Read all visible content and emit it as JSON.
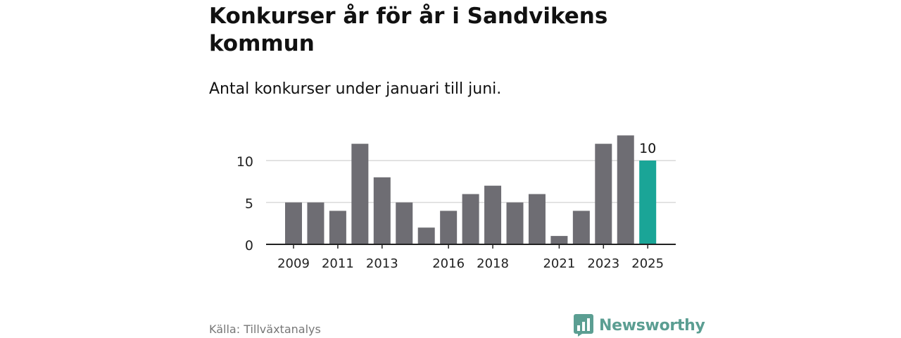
{
  "chart_data": {
    "type": "bar",
    "title": "Konkurser år för år i Sandvikens kommun",
    "subtitle": "Antal konkurser under januari till juni.",
    "categories": [
      "2009",
      "2010",
      "2011",
      "2012",
      "2013",
      "2014",
      "2015",
      "2016",
      "2017",
      "2018",
      "2019",
      "2020",
      "2021",
      "2022",
      "2023",
      "2024",
      "2025"
    ],
    "tick_labels": [
      "2009",
      "2011",
      "2013",
      "2016",
      "2018",
      "2021",
      "2023",
      "2025"
    ],
    "values": [
      5,
      5,
      4,
      12,
      8,
      5,
      2,
      4,
      6,
      7,
      5,
      6,
      1,
      4,
      12,
      13,
      10
    ],
    "highlight": {
      "category": "2025",
      "label": "10"
    },
    "ylim": [
      0,
      13
    ],
    "yticks": [
      0,
      5,
      10
    ],
    "grid": true,
    "colors": {
      "bar": "#6e6d73",
      "highlight": "#1aa597",
      "grid": "#d9d9d9",
      "axis": "#222222"
    }
  },
  "footer": {
    "source": "Källa: Tillväxtanalys",
    "brand": "Newsworthy",
    "brand_icon": "bar-chart-speech-bubble-icon",
    "brand_color": "#5b9e92"
  }
}
